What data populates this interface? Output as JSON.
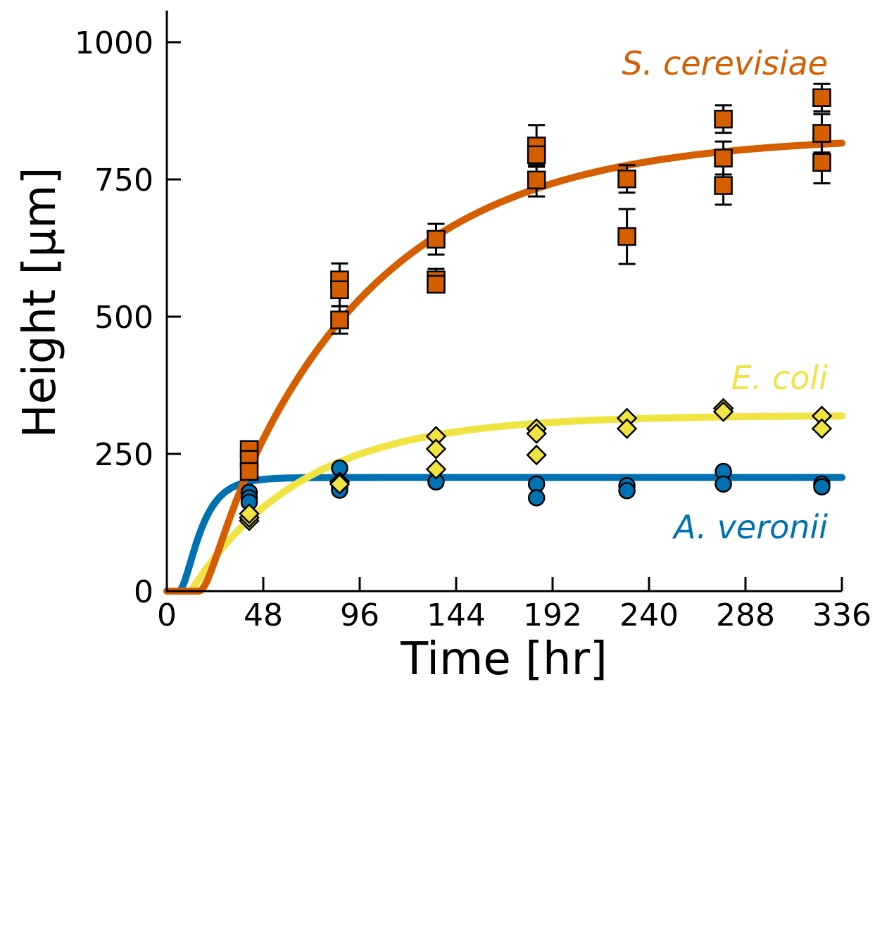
{
  "chart_data": {
    "type": "scatter",
    "title": "",
    "xlabel": "Time [hr]",
    "ylabel": "Height [µm]",
    "xlim": [
      0,
      336
    ],
    "ylim": [
      0,
      1060
    ],
    "xticks": [
      0,
      48,
      96,
      144,
      192,
      240,
      288,
      336
    ],
    "yticks": [
      0,
      250,
      500,
      750,
      1000
    ],
    "grid": false,
    "series": [
      {
        "name": "S. cerevisiae",
        "color": "#d55e00",
        "marker": "square",
        "fit": {
          "model": "sigmoid-exp",
          "max": 830,
          "rate": 0.0128,
          "lag": 16
        },
        "points": [
          {
            "x": 41,
            "y": 258,
            "err": 15
          },
          {
            "x": 41,
            "y": 240,
            "err": 15
          },
          {
            "x": 41,
            "y": 218,
            "err": 15
          },
          {
            "x": 86,
            "y": 567,
            "err": 30
          },
          {
            "x": 86,
            "y": 549,
            "err": 30
          },
          {
            "x": 86,
            "y": 494,
            "err": 25
          },
          {
            "x": 134,
            "y": 641,
            "err": 28
          },
          {
            "x": 134,
            "y": 567,
            "err": 20
          },
          {
            "x": 134,
            "y": 559,
            "err": 12
          },
          {
            "x": 184,
            "y": 811,
            "err": 38
          },
          {
            "x": 184,
            "y": 795,
            "err": 20
          },
          {
            "x": 184,
            "y": 749,
            "err": 30
          },
          {
            "x": 229,
            "y": 751,
            "err": 25
          },
          {
            "x": 229,
            "y": 646,
            "err": 50
          },
          {
            "x": 277,
            "y": 860,
            "err": 25
          },
          {
            "x": 277,
            "y": 789,
            "err": 30
          },
          {
            "x": 277,
            "y": 739,
            "err": 35
          },
          {
            "x": 326,
            "y": 899,
            "err": 25
          },
          {
            "x": 326,
            "y": 834,
            "err": 35
          },
          {
            "x": 326,
            "y": 781,
            "err": 38
          }
        ]
      },
      {
        "name": "E. coli",
        "color": "#f0e442",
        "marker": "diamond",
        "fit": {
          "model": "exp",
          "max": 320,
          "rate": 0.018,
          "lag": 12
        },
        "points": [
          {
            "x": 41,
            "y": 128
          },
          {
            "x": 41,
            "y": 134
          },
          {
            "x": 41,
            "y": 141
          },
          {
            "x": 86,
            "y": 199
          },
          {
            "x": 86,
            "y": 195
          },
          {
            "x": 134,
            "y": 282
          },
          {
            "x": 134,
            "y": 259
          },
          {
            "x": 134,
            "y": 222
          },
          {
            "x": 184,
            "y": 296
          },
          {
            "x": 184,
            "y": 287
          },
          {
            "x": 184,
            "y": 248
          },
          {
            "x": 229,
            "y": 315
          },
          {
            "x": 229,
            "y": 296
          },
          {
            "x": 277,
            "y": 333
          },
          {
            "x": 277,
            "y": 327
          },
          {
            "x": 326,
            "y": 319
          },
          {
            "x": 326,
            "y": 296
          }
        ]
      },
      {
        "name": "A. veronii",
        "color": "#0072b2",
        "marker": "circle",
        "fit": {
          "model": "sigmoid-exp",
          "max": 207,
          "rate": 0.1,
          "lag": 6
        },
        "points": [
          {
            "x": 41,
            "y": 180
          },
          {
            "x": 41,
            "y": 170
          },
          {
            "x": 41,
            "y": 162
          },
          {
            "x": 86,
            "y": 224
          },
          {
            "x": 86,
            "y": 190
          },
          {
            "x": 86,
            "y": 184
          },
          {
            "x": 134,
            "y": 199
          },
          {
            "x": 184,
            "y": 195
          },
          {
            "x": 184,
            "y": 170
          },
          {
            "x": 229,
            "y": 192
          },
          {
            "x": 229,
            "y": 183
          },
          {
            "x": 277,
            "y": 218
          },
          {
            "x": 277,
            "y": 195
          },
          {
            "x": 326,
            "y": 195
          },
          {
            "x": 326,
            "y": 190
          }
        ]
      }
    ]
  }
}
